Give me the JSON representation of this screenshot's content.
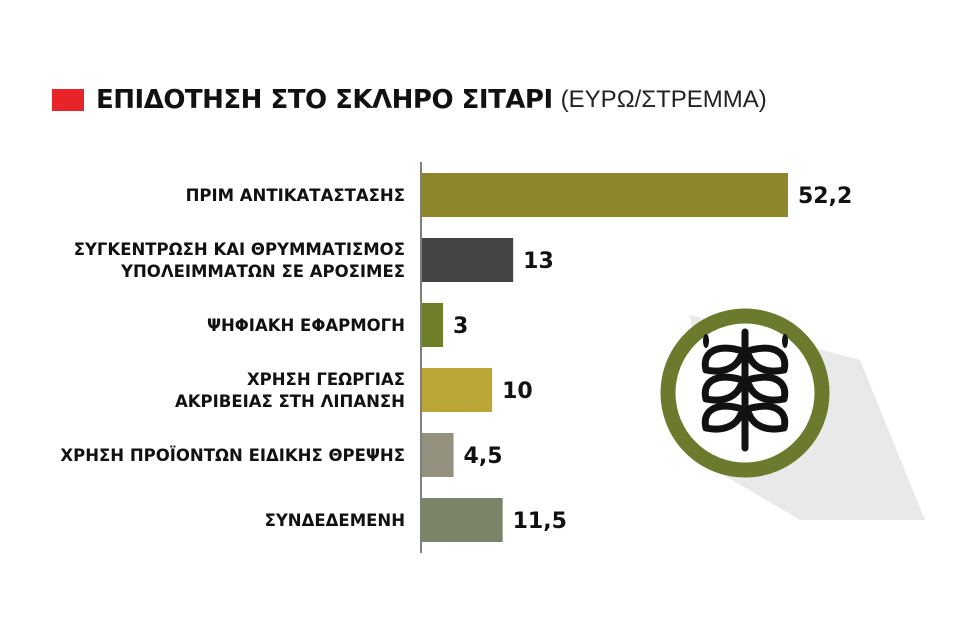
{
  "header": {
    "title": "ΕΠΙΔΟΤΗΣΗ ΣΤΟ ΣΚΛΗΡΟ ΣΙΤΑΡΙ",
    "unit": "(ΕΥΡΩ/ΣΤΡΕΜΜΑ)",
    "marker_color": "#e8232a"
  },
  "chart_data": {
    "type": "bar",
    "orientation": "horizontal",
    "title": "ΕΠΙΔΟΤΗΣΗ ΣΤΟ ΣΚΛΗΡΟ ΣΙΤΑΡΙ",
    "subtitle": "(ΕΥΡΩ/ΣΤΡΕΜΜΑ)",
    "categories": [
      [
        "ΠΡΙΜ ΑΝΤΙΚΑΤΑΣΤΑΣΗΣ"
      ],
      [
        "ΣΥΓΚΕΝΤΡΩΣΗ ΚΑΙ ΘΡΥΜΜΑΤΙΣΜΟΣ",
        "ΥΠΟΛΕΙΜΜΑΤΩΝ ΣΕ ΑΡΟΣΙΜΕΣ"
      ],
      [
        "ΨΗΦΙΑΚΗ ΕΦΑΡΜΟΓΗ"
      ],
      [
        "ΧΡΗΣΗ ΓΕΩΡΓΙΑΣ",
        "ΑΚΡΙΒΕΙΑΣ ΣΤΗ ΛΙΠΑΝΣΗ"
      ],
      [
        "ΧΡΗΣΗ ΠΡΟΪΟΝΤΩΝ ΕΙΔΙΚΗΣ ΘΡΕΨΗΣ"
      ],
      [
        "ΣΥΝΔΕΔΕΜΕΝΗ"
      ]
    ],
    "values": [
      52.2,
      13,
      3,
      10,
      4.5,
      11.5
    ],
    "value_labels": [
      "52,2",
      "13",
      "3",
      "10",
      "4,5",
      "11,5"
    ],
    "colors": [
      "#8f872b",
      "#444444",
      "#6f7f29",
      "#b9a637",
      "#95917f",
      "#798566"
    ],
    "xlim": [
      0,
      52.2
    ],
    "grid": false,
    "legend": "none"
  },
  "icon": {
    "name": "wheat-icon",
    "ring_color": "#6b7a2c",
    "glyph_color": "#111111",
    "shadow_color": "#e9e9e9"
  }
}
